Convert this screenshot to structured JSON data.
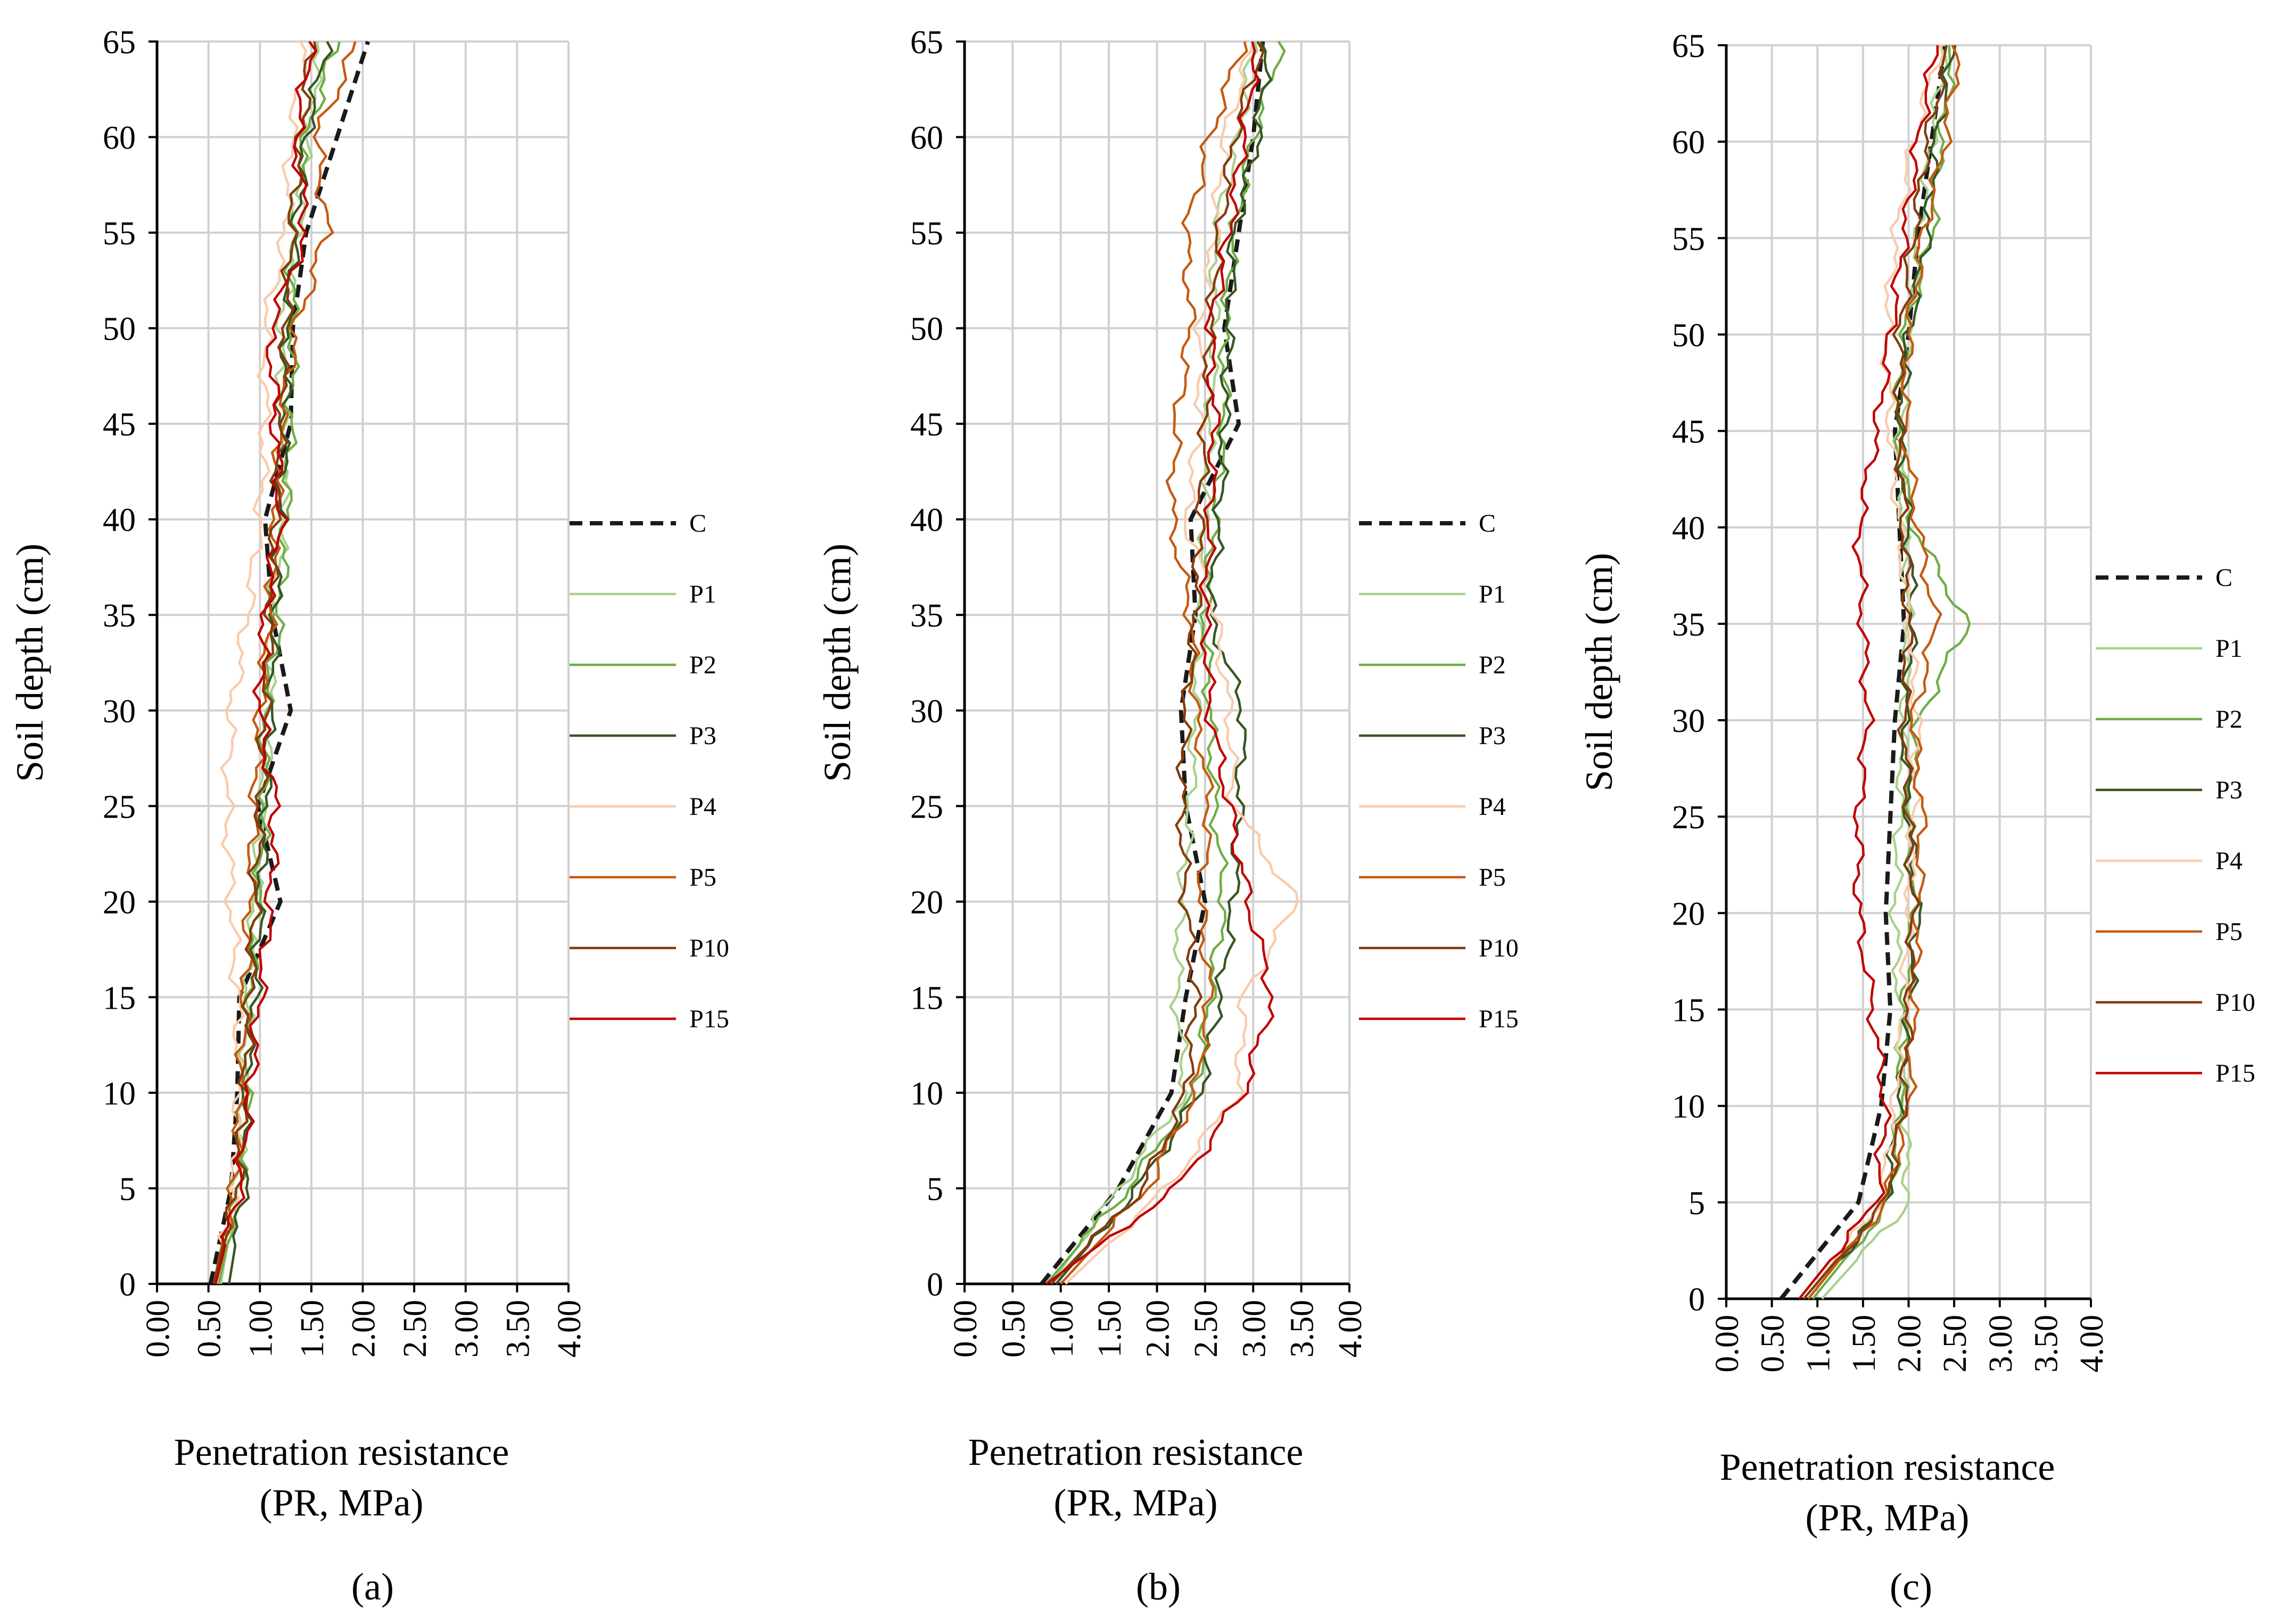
{
  "figure": {
    "panel_labels": [
      "(a)",
      "(b)",
      "(c)"
    ],
    "colors": {
      "C": "#1a1a1a",
      "P1": "#a9d18e",
      "P2": "#70ad47",
      "P3": "#375623",
      "P4": "#f8cbad",
      "P5": "#c55a11",
      "P10": "#843c0c",
      "P15": "#c00000",
      "grid": "#d0d0d0",
      "axis": "#000000"
    }
  },
  "chart_data": [
    {
      "type": "line",
      "panel": "(a)",
      "ylabel": "Soil depth (cm)",
      "xlabel": [
        "Penetration resistance",
        "(PR, MPa)"
      ],
      "xlim": [
        0,
        4
      ],
      "ylim": [
        0,
        65
      ],
      "xticks": [
        "0.00",
        "0.50",
        "1.00",
        "1.50",
        "2.00",
        "2.50",
        "3.00",
        "3.50",
        "4.00"
      ],
      "yticks": [
        "0",
        "5",
        "10",
        "15",
        "20",
        "25",
        "30",
        "35",
        "40",
        "45",
        "50",
        "55",
        "60",
        "65"
      ],
      "grid": true,
      "legend": [
        "C",
        "P1",
        "P2",
        "P3",
        "P4",
        "P5",
        "P10",
        "P15"
      ],
      "legend_position": "right",
      "depth": [
        0,
        5,
        10,
        15,
        20,
        25,
        30,
        35,
        40,
        45,
        50,
        55,
        60,
        65
      ],
      "series": [
        {
          "name": "C",
          "dash": true,
          "values": [
            0.52,
            0.72,
            0.78,
            0.8,
            1.2,
            0.98,
            1.3,
            1.12,
            1.05,
            1.3,
            1.32,
            1.45,
            1.75,
            2.05
          ]
        },
        {
          "name": "P1",
          "values": [
            0.62,
            0.78,
            0.85,
            0.88,
            0.95,
            1.02,
            1.1,
            1.1,
            1.25,
            1.22,
            1.2,
            1.38,
            1.45,
            1.6
          ]
        },
        {
          "name": "P2",
          "values": [
            0.6,
            0.8,
            0.88,
            0.9,
            0.98,
            1.05,
            1.05,
            1.2,
            1.25,
            1.3,
            1.32,
            1.3,
            1.45,
            1.75
          ]
        },
        {
          "name": "P3",
          "values": [
            0.7,
            0.85,
            0.85,
            0.95,
            1.0,
            1.05,
            1.1,
            1.15,
            1.2,
            1.25,
            1.25,
            1.35,
            1.45,
            1.65
          ]
        },
        {
          "name": "P4",
          "values": [
            0.58,
            0.75,
            0.8,
            0.78,
            0.72,
            0.68,
            0.72,
            0.88,
            1.0,
            1.05,
            1.05,
            1.25,
            1.3,
            1.45
          ]
        },
        {
          "name": "P5",
          "values": [
            0.55,
            0.75,
            0.82,
            0.85,
            0.9,
            0.95,
            1.0,
            1.1,
            1.15,
            1.2,
            1.35,
            1.65,
            1.55,
            1.95
          ]
        },
        {
          "name": "P10",
          "values": [
            0.55,
            0.78,
            0.85,
            0.9,
            0.95,
            1.0,
            1.05,
            1.1,
            1.15,
            1.2,
            1.25,
            1.3,
            1.4,
            1.5
          ]
        },
        {
          "name": "P15",
          "values": [
            0.57,
            0.8,
            0.9,
            1.0,
            1.1,
            1.15,
            1.0,
            1.05,
            1.2,
            1.15,
            1.1,
            1.45,
            1.35,
            1.5
          ]
        }
      ]
    },
    {
      "type": "line",
      "panel": "(b)",
      "ylabel": "Soil depth (cm)",
      "xlabel": [
        "Penetration resistance",
        "(PR, MPa)"
      ],
      "xlim": [
        0,
        4
      ],
      "ylim": [
        0,
        65
      ],
      "xticks": [
        "0.00",
        "0.50",
        "1.00",
        "1.50",
        "2.00",
        "2.50",
        "3.00",
        "3.50",
        "4.00"
      ],
      "yticks": [
        "0",
        "5",
        "10",
        "15",
        "20",
        "25",
        "30",
        "35",
        "40",
        "45",
        "50",
        "55",
        "60",
        "65"
      ],
      "grid": true,
      "legend": [
        "C",
        "P1",
        "P2",
        "P3",
        "P4",
        "P5",
        "P10",
        "P15"
      ],
      "legend_position": "right",
      "depth": [
        0,
        5,
        10,
        15,
        20,
        25,
        30,
        35,
        40,
        45,
        50,
        55,
        60,
        65
      ],
      "series": [
        {
          "name": "C",
          "dash": true,
          "values": [
            0.8,
            1.6,
            2.15,
            2.3,
            2.5,
            2.3,
            2.25,
            2.4,
            2.35,
            2.85,
            2.7,
            2.85,
            3.0,
            3.1
          ]
        },
        {
          "name": "P1",
          "values": [
            0.9,
            1.6,
            2.3,
            2.2,
            2.25,
            2.35,
            2.4,
            2.45,
            2.5,
            2.55,
            2.6,
            2.6,
            2.85,
            3.0
          ]
        },
        {
          "name": "P2",
          "values": [
            0.85,
            1.7,
            2.4,
            2.55,
            2.7,
            2.6,
            2.55,
            2.5,
            2.6,
            2.7,
            2.7,
            2.8,
            3.0,
            3.3
          ]
        },
        {
          "name": "P3",
          "values": [
            0.95,
            1.8,
            2.45,
            2.65,
            2.8,
            2.85,
            2.9,
            2.55,
            2.65,
            2.7,
            2.75,
            2.8,
            3.05,
            3.15
          ]
        },
        {
          "name": "P4",
          "values": [
            1.05,
            2.1,
            2.85,
            2.9,
            3.45,
            2.8,
            2.75,
            2.6,
            2.3,
            2.45,
            2.45,
            2.6,
            2.7,
            3.0
          ]
        },
        {
          "name": "P5",
          "values": [
            1.0,
            1.9,
            2.4,
            2.55,
            2.45,
            2.55,
            2.4,
            2.35,
            2.15,
            2.2,
            2.35,
            2.3,
            2.55,
            2.9
          ]
        },
        {
          "name": "P10",
          "values": [
            0.9,
            1.85,
            2.3,
            2.4,
            2.3,
            2.25,
            2.3,
            2.4,
            2.45,
            2.5,
            2.55,
            2.65,
            2.8,
            3.1
          ]
        },
        {
          "name": "P15",
          "values": [
            0.85,
            2.2,
            2.9,
            3.2,
            2.95,
            2.75,
            2.55,
            2.5,
            2.55,
            2.6,
            2.55,
            2.75,
            2.9,
            3.05
          ]
        }
      ]
    },
    {
      "type": "line",
      "panel": "(c)",
      "ylabel": "Soil depth (cm)",
      "xlabel": [
        "Penetration resistance",
        "(PR, MPa)"
      ],
      "xlim": [
        0,
        4
      ],
      "ylim": [
        0,
        65
      ],
      "xticks": [
        "0.00",
        "0.50",
        "1.00",
        "1.50",
        "2.00",
        "2.50",
        "3.00",
        "3.50",
        "4.00"
      ],
      "yticks": [
        "0",
        "5",
        "10",
        "15",
        "20",
        "25",
        "30",
        "35",
        "40",
        "45",
        "50",
        "55",
        "60",
        "65"
      ],
      "grid": true,
      "legend": [
        "C",
        "P1",
        "P2",
        "P3",
        "P4",
        "P5",
        "P10",
        "P15"
      ],
      "legend_position": "right",
      "depth": [
        0,
        5,
        10,
        15,
        20,
        25,
        30,
        35,
        40,
        45,
        50,
        55,
        60,
        65
      ],
      "series": [
        {
          "name": "C",
          "dash": true,
          "values": [
            0.6,
            1.45,
            1.7,
            1.8,
            1.75,
            1.8,
            1.85,
            1.95,
            1.9,
            1.85,
            2.0,
            2.1,
            2.25,
            2.4
          ]
        },
        {
          "name": "P1",
          "values": [
            1.05,
            2.0,
            1.95,
            1.9,
            1.85,
            1.9,
            1.95,
            2.0,
            1.95,
            1.9,
            2.0,
            2.1,
            2.25,
            2.4
          ]
        },
        {
          "name": "P2",
          "values": [
            0.95,
            1.8,
            1.9,
            1.95,
            2.05,
            2.0,
            2.1,
            2.65,
            2.05,
            1.85,
            1.95,
            2.25,
            2.35,
            2.5
          ]
        },
        {
          "name": "P3",
          "values": [
            0.9,
            1.75,
            1.9,
            2.0,
            2.1,
            2.0,
            1.95,
            2.05,
            2.0,
            1.9,
            2.0,
            2.2,
            2.3,
            2.5
          ]
        },
        {
          "name": "P4",
          "values": [
            0.85,
            1.7,
            1.85,
            1.95,
            2.0,
            2.05,
            2.1,
            2.0,
            1.9,
            1.8,
            1.75,
            1.85,
            2.05,
            2.35
          ]
        },
        {
          "name": "P5",
          "values": [
            0.9,
            1.75,
            2.0,
            2.05,
            2.1,
            2.15,
            2.05,
            2.3,
            2.1,
            1.95,
            2.0,
            2.15,
            2.4,
            2.55
          ]
        },
        {
          "name": "P10",
          "values": [
            0.85,
            1.75,
            1.95,
            2.0,
            2.05,
            2.0,
            1.95,
            2.0,
            1.95,
            1.9,
            1.9,
            2.05,
            2.2,
            2.45
          ]
        },
        {
          "name": "P15",
          "values": [
            0.8,
            1.65,
            1.75,
            1.6,
            1.45,
            1.45,
            1.55,
            1.5,
            1.45,
            1.65,
            1.8,
            1.95,
            2.1,
            2.3
          ]
        }
      ]
    }
  ]
}
